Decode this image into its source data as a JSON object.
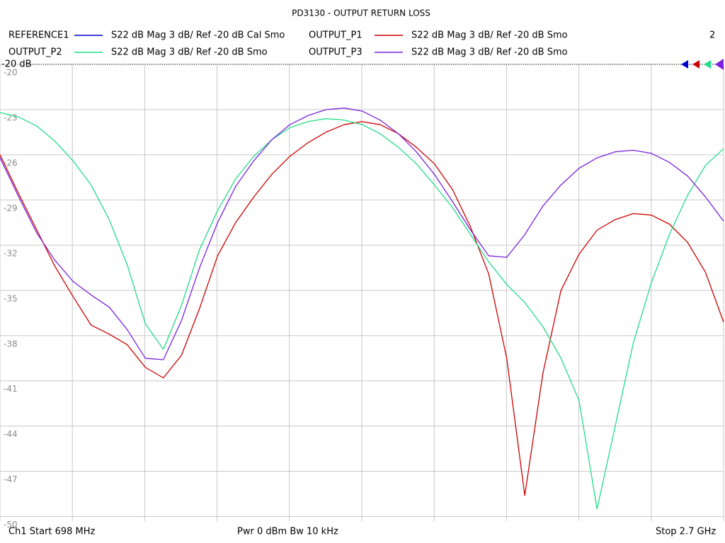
{
  "chart_data": {
    "type": "line",
    "title": "PD3130 - OUTPUT RETURN LOSS",
    "annotation": "2",
    "ref_label": "-20 dB",
    "footer_left": "Ch1  Start  698 MHz",
    "footer_center": "Pwr  0 dBm  Bw  10 kHz",
    "footer_right": "Stop  2.7 GHz",
    "x": [
      698,
      750,
      800,
      850,
      900,
      950,
      1000,
      1050,
      1100,
      1150,
      1200,
      1250,
      1300,
      1350,
      1400,
      1450,
      1500,
      1550,
      1600,
      1650,
      1700,
      1750,
      1800,
      1850,
      1900,
      1950,
      2000,
      2050,
      2100,
      2150,
      2200,
      2250,
      2300,
      2350,
      2400,
      2450,
      2500,
      2550,
      2600,
      2650,
      2700
    ],
    "xlim": [
      698,
      2700
    ],
    "xticks": [
      698,
      898.2,
      1098.4,
      1298.6,
      1498.8,
      1699,
      1899.2,
      2099.4,
      2299.6,
      2499.8,
      2700
    ],
    "ylim": [
      -50.3,
      -20
    ],
    "yticks": [
      -20,
      -23,
      -26,
      -29,
      -32,
      -35,
      -38,
      -41,
      -44,
      -47,
      -50
    ],
    "grid": true,
    "series": [
      {
        "name": "REFERENCE1",
        "description": "S22  dB Mag  3 dB/ Ref -20 dB  Cal Smo",
        "color": "#0000cc",
        "values": [
          null,
          null,
          null,
          null,
          null,
          null,
          null,
          null,
          null,
          null,
          null,
          null,
          null,
          null,
          null,
          null,
          null,
          null,
          null,
          null,
          null,
          null,
          null,
          null,
          null,
          null,
          null,
          null,
          null,
          null,
          null,
          null,
          null,
          null,
          null,
          null,
          null,
          null,
          null,
          null,
          null
        ]
      },
      {
        "name": "OUTPUT_P1",
        "description": "S22  dB Mag  3 dB/ Ref -20 dB  Smo",
        "color": "#cc0000",
        "values": [
          -26.0,
          -28.6,
          -31.0,
          -33.4,
          -35.4,
          -37.3,
          -37.9,
          -38.6,
          -40.1,
          -40.8,
          -39.3,
          -36.2,
          -32.7,
          -30.5,
          -28.8,
          -27.3,
          -26.1,
          -25.2,
          -24.5,
          -24.0,
          -23.8,
          -24.0,
          -24.6,
          -25.5,
          -26.6,
          -28.3,
          -30.8,
          -33.9,
          -39.5,
          -48.6,
          -40.5,
          -35.0,
          -32.6,
          -31.0,
          -30.3,
          -29.9,
          -30.0,
          -30.6,
          -31.8,
          -33.8,
          -37.1
        ]
      },
      {
        "name": "OUTPUT_P2",
        "description": "S22  dB Mag  3 dB/ Ref -20 dB  Smo",
        "color": "#22dd88",
        "values": [
          -23.2,
          -23.5,
          -24.1,
          -25.1,
          -26.4,
          -28.0,
          -30.3,
          -33.3,
          -37.2,
          -38.9,
          -36.0,
          -32.3,
          -29.7,
          -27.6,
          -26.1,
          -25.0,
          -24.2,
          -23.8,
          -23.6,
          -23.7,
          -24.0,
          -24.6,
          -25.5,
          -26.6,
          -28.0,
          -29.5,
          -31.3,
          -33.1,
          -34.6,
          -35.8,
          -37.4,
          -39.5,
          -42.3,
          -49.5,
          -44.0,
          -38.5,
          -34.5,
          -31.3,
          -28.7,
          -26.7,
          -25.6
        ]
      },
      {
        "name": "OUTPUT_P3",
        "description": "S22  dB Mag  3 dB/ Ref -20 dB  Smo",
        "color": "#7a22dd",
        "values": [
          -26.2,
          -28.8,
          -31.2,
          -33.0,
          -34.4,
          -35.3,
          -36.1,
          -37.6,
          -39.5,
          -39.6,
          -37.0,
          -33.5,
          -30.5,
          -28.1,
          -26.4,
          -25.0,
          -24.0,
          -23.4,
          -23.0,
          -22.9,
          -23.1,
          -23.7,
          -24.6,
          -25.8,
          -27.3,
          -29.1,
          -31.0,
          -32.7,
          -32.8,
          -31.3,
          -29.4,
          -28.0,
          -26.9,
          -26.2,
          -25.8,
          -25.7,
          -25.9,
          -26.5,
          -27.4,
          -28.8,
          -30.4
        ]
      }
    ]
  }
}
